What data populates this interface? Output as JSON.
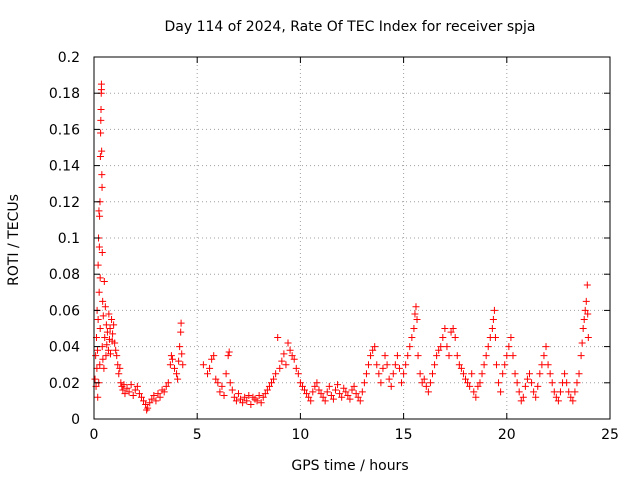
{
  "chart_data": {
    "type": "scatter",
    "title": "Day 114 of 2024, Rate Of TEC Index for receiver spja",
    "xlabel": "GPS time / hours",
    "ylabel": "ROTI / TECUs",
    "xlim": [
      0,
      25
    ],
    "ylim": [
      0,
      0.2
    ],
    "xticks": [
      0,
      5,
      10,
      15,
      20,
      25
    ],
    "xtick_labels": [
      "0",
      "5",
      "10",
      "15",
      "20",
      "25"
    ],
    "yticks": [
      0,
      0.02,
      0.04,
      0.06,
      0.08,
      0.1,
      0.12,
      0.14,
      0.16,
      0.18,
      0.2
    ],
    "ytick_labels": [
      "0",
      "0.02",
      "0.04",
      "0.06",
      "0.08",
      "0.1",
      "0.12",
      "0.14",
      "0.16",
      "0.18",
      "0.2"
    ],
    "grid": true,
    "marker": "+",
    "series": [
      {
        "name": "ROTI",
        "color": "#ff0000",
        "points": [
          [
            0.05,
            0.022
          ],
          [
            0.08,
            0.035
          ],
          [
            0.1,
            0.018
          ],
          [
            0.12,
            0.045
          ],
          [
            0.14,
            0.028
          ],
          [
            0.15,
            0.06
          ],
          [
            0.17,
            0.038
          ],
          [
            0.18,
            0.012
          ],
          [
            0.2,
            0.055
          ],
          [
            0.2,
            0.085
          ],
          [
            0.22,
            0.1
          ],
          [
            0.23,
            0.02
          ],
          [
            0.24,
            0.115
          ],
          [
            0.25,
            0.07
          ],
          [
            0.26,
            0.095
          ],
          [
            0.27,
            0.112
          ],
          [
            0.28,
            0.03
          ],
          [
            0.29,
            0.12
          ],
          [
            0.3,
            0.078
          ],
          [
            0.3,
            0.05
          ],
          [
            0.31,
            0.145
          ],
          [
            0.32,
            0.158
          ],
          [
            0.33,
            0.165
          ],
          [
            0.34,
            0.171
          ],
          [
            0.35,
            0.18
          ],
          [
            0.36,
            0.182
          ],
          [
            0.36,
            0.185
          ],
          [
            0.37,
            0.148
          ],
          [
            0.38,
            0.135
          ],
          [
            0.39,
            0.128
          ],
          [
            0.4,
            0.092
          ],
          [
            0.4,
            0.04
          ],
          [
            0.42,
            0.065
          ],
          [
            0.43,
            0.033
          ],
          [
            0.45,
            0.057
          ],
          [
            0.48,
            0.028
          ],
          [
            0.5,
            0.076
          ],
          [
            0.52,
            0.045
          ],
          [
            0.55,
            0.062
          ],
          [
            0.58,
            0.035
          ],
          [
            0.6,
            0.052
          ],
          [
            0.62,
            0.041
          ],
          [
            0.65,
            0.048
          ],
          [
            0.7,
            0.038
          ],
          [
            0.72,
            0.058
          ],
          [
            0.75,
            0.044
          ],
          [
            0.78,
            0.05
          ],
          [
            0.8,
            0.036
          ],
          [
            0.85,
            0.055
          ],
          [
            0.88,
            0.043
          ],
          [
            0.9,
            0.047
          ],
          [
            0.95,
            0.052
          ],
          [
            1.0,
            0.042
          ],
          [
            1.05,
            0.038
          ],
          [
            1.1,
            0.035
          ],
          [
            1.15,
            0.03
          ],
          [
            1.2,
            0.025
          ],
          [
            1.25,
            0.028
          ],
          [
            1.3,
            0.02
          ],
          [
            1.35,
            0.018
          ],
          [
            1.4,
            0.016
          ],
          [
            1.45,
            0.019
          ],
          [
            1.5,
            0.014
          ],
          [
            1.6,
            0.017
          ],
          [
            1.7,
            0.015
          ],
          [
            1.8,
            0.019
          ],
          [
            1.9,
            0.013
          ],
          [
            2.0,
            0.016
          ],
          [
            2.1,
            0.018
          ],
          [
            2.2,
            0.014
          ],
          [
            2.3,
            0.012
          ],
          [
            2.4,
            0.01
          ],
          [
            2.5,
            0.008
          ],
          [
            2.55,
            0.005
          ],
          [
            2.6,
            0.006
          ],
          [
            2.7,
            0.009
          ],
          [
            2.8,
            0.011
          ],
          [
            2.9,
            0.013
          ],
          [
            3.0,
            0.01
          ],
          [
            3.1,
            0.014
          ],
          [
            3.2,
            0.012
          ],
          [
            3.3,
            0.016
          ],
          [
            3.4,
            0.015
          ],
          [
            3.5,
            0.018
          ],
          [
            3.6,
            0.02
          ],
          [
            3.7,
            0.03
          ],
          [
            3.75,
            0.035
          ],
          [
            3.8,
            0.033
          ],
          [
            3.9,
            0.028
          ],
          [
            4.0,
            0.025
          ],
          [
            4.05,
            0.022
          ],
          [
            4.1,
            0.032
          ],
          [
            4.15,
            0.04
          ],
          [
            4.2,
            0.048
          ],
          [
            4.22,
            0.053
          ],
          [
            4.25,
            0.036
          ],
          [
            4.3,
            0.03
          ],
          [
            5.3,
            0.03
          ],
          [
            5.5,
            0.025
          ],
          [
            5.6,
            0.028
          ],
          [
            5.7,
            0.033
          ],
          [
            5.8,
            0.035
          ],
          [
            5.9,
            0.022
          ],
          [
            6.0,
            0.02
          ],
          [
            6.1,
            0.015
          ],
          [
            6.2,
            0.018
          ],
          [
            6.3,
            0.013
          ],
          [
            6.4,
            0.025
          ],
          [
            6.5,
            0.035
          ],
          [
            6.55,
            0.037
          ],
          [
            6.6,
            0.02
          ],
          [
            6.7,
            0.016
          ],
          [
            6.8,
            0.012
          ],
          [
            6.9,
            0.01
          ],
          [
            7.0,
            0.014
          ],
          [
            7.1,
            0.011
          ],
          [
            7.2,
            0.009
          ],
          [
            7.3,
            0.012
          ],
          [
            7.4,
            0.01
          ],
          [
            7.5,
            0.013
          ],
          [
            7.6,
            0.008
          ],
          [
            7.7,
            0.012
          ],
          [
            7.8,
            0.011
          ],
          [
            7.9,
            0.01
          ],
          [
            8.0,
            0.013
          ],
          [
            8.1,
            0.009
          ],
          [
            8.2,
            0.012
          ],
          [
            8.3,
            0.014
          ],
          [
            8.4,
            0.016
          ],
          [
            8.5,
            0.018
          ],
          [
            8.6,
            0.02
          ],
          [
            8.7,
            0.022
          ],
          [
            8.8,
            0.025
          ],
          [
            8.9,
            0.045
          ],
          [
            9.0,
            0.028
          ],
          [
            9.1,
            0.032
          ],
          [
            9.2,
            0.036
          ],
          [
            9.3,
            0.03
          ],
          [
            9.4,
            0.042
          ],
          [
            9.5,
            0.038
          ],
          [
            9.6,
            0.035
          ],
          [
            9.7,
            0.033
          ],
          [
            9.8,
            0.028
          ],
          [
            9.9,
            0.025
          ],
          [
            10.0,
            0.02
          ],
          [
            10.1,
            0.018
          ],
          [
            10.2,
            0.016
          ],
          [
            10.3,
            0.014
          ],
          [
            10.4,
            0.012
          ],
          [
            10.5,
            0.01
          ],
          [
            10.6,
            0.015
          ],
          [
            10.7,
            0.018
          ],
          [
            10.8,
            0.02
          ],
          [
            10.9,
            0.016
          ],
          [
            11.0,
            0.014
          ],
          [
            11.1,
            0.012
          ],
          [
            11.2,
            0.01
          ],
          [
            11.3,
            0.015
          ],
          [
            11.4,
            0.018
          ],
          [
            11.5,
            0.013
          ],
          [
            11.6,
            0.011
          ],
          [
            11.7,
            0.016
          ],
          [
            11.8,
            0.019
          ],
          [
            11.9,
            0.014
          ],
          [
            12.0,
            0.012
          ],
          [
            12.1,
            0.017
          ],
          [
            12.2,
            0.015
          ],
          [
            12.3,
            0.013
          ],
          [
            12.4,
            0.011
          ],
          [
            12.5,
            0.016
          ],
          [
            12.6,
            0.018
          ],
          [
            12.7,
            0.014
          ],
          [
            12.8,
            0.012
          ],
          [
            12.9,
            0.01
          ],
          [
            13.0,
            0.015
          ],
          [
            13.1,
            0.02
          ],
          [
            13.2,
            0.025
          ],
          [
            13.3,
            0.03
          ],
          [
            13.4,
            0.035
          ],
          [
            13.5,
            0.038
          ],
          [
            13.6,
            0.04
          ],
          [
            13.7,
            0.03
          ],
          [
            13.8,
            0.025
          ],
          [
            13.9,
            0.02
          ],
          [
            14.0,
            0.028
          ],
          [
            14.1,
            0.035
          ],
          [
            14.2,
            0.03
          ],
          [
            14.3,
            0.022
          ],
          [
            14.4,
            0.018
          ],
          [
            14.5,
            0.025
          ],
          [
            14.6,
            0.03
          ],
          [
            14.7,
            0.035
          ],
          [
            14.8,
            0.028
          ],
          [
            14.9,
            0.02
          ],
          [
            15.0,
            0.025
          ],
          [
            15.1,
            0.03
          ],
          [
            15.2,
            0.035
          ],
          [
            15.3,
            0.04
          ],
          [
            15.4,
            0.045
          ],
          [
            15.5,
            0.05
          ],
          [
            15.55,
            0.058
          ],
          [
            15.6,
            0.062
          ],
          [
            15.65,
            0.055
          ],
          [
            15.7,
            0.035
          ],
          [
            15.8,
            0.025
          ],
          [
            15.9,
            0.02
          ],
          [
            16.0,
            0.022
          ],
          [
            16.1,
            0.018
          ],
          [
            16.2,
            0.015
          ],
          [
            16.3,
            0.02
          ],
          [
            16.4,
            0.025
          ],
          [
            16.5,
            0.03
          ],
          [
            16.6,
            0.035
          ],
          [
            16.7,
            0.038
          ],
          [
            16.8,
            0.04
          ],
          [
            16.9,
            0.045
          ],
          [
            17.0,
            0.05
          ],
          [
            17.1,
            0.04
          ],
          [
            17.2,
            0.035
          ],
          [
            17.3,
            0.048
          ],
          [
            17.4,
            0.05
          ],
          [
            17.5,
            0.045
          ],
          [
            17.6,
            0.035
          ],
          [
            17.7,
            0.03
          ],
          [
            17.8,
            0.028
          ],
          [
            17.9,
            0.025
          ],
          [
            18.0,
            0.022
          ],
          [
            18.1,
            0.02
          ],
          [
            18.2,
            0.018
          ],
          [
            18.3,
            0.025
          ],
          [
            18.4,
            0.015
          ],
          [
            18.5,
            0.012
          ],
          [
            18.6,
            0.018
          ],
          [
            18.7,
            0.02
          ],
          [
            18.8,
            0.025
          ],
          [
            18.9,
            0.03
          ],
          [
            19.0,
            0.035
          ],
          [
            19.1,
            0.04
          ],
          [
            19.2,
            0.045
          ],
          [
            19.3,
            0.05
          ],
          [
            19.35,
            0.055
          ],
          [
            19.4,
            0.06
          ],
          [
            19.45,
            0.045
          ],
          [
            19.5,
            0.03
          ],
          [
            19.6,
            0.02
          ],
          [
            19.7,
            0.015
          ],
          [
            19.8,
            0.025
          ],
          [
            19.9,
            0.03
          ],
          [
            20.0,
            0.035
          ],
          [
            20.1,
            0.04
          ],
          [
            20.2,
            0.045
          ],
          [
            20.3,
            0.035
          ],
          [
            20.4,
            0.025
          ],
          [
            20.5,
            0.02
          ],
          [
            20.6,
            0.015
          ],
          [
            20.7,
            0.01
          ],
          [
            20.8,
            0.012
          ],
          [
            20.9,
            0.018
          ],
          [
            21.0,
            0.022
          ],
          [
            21.1,
            0.025
          ],
          [
            21.2,
            0.02
          ],
          [
            21.3,
            0.015
          ],
          [
            21.4,
            0.012
          ],
          [
            21.5,
            0.018
          ],
          [
            21.6,
            0.025
          ],
          [
            21.7,
            0.03
          ],
          [
            21.8,
            0.035
          ],
          [
            21.9,
            0.04
          ],
          [
            22.0,
            0.03
          ],
          [
            22.1,
            0.025
          ],
          [
            22.2,
            0.02
          ],
          [
            22.3,
            0.015
          ],
          [
            22.4,
            0.012
          ],
          [
            22.5,
            0.01
          ],
          [
            22.6,
            0.015
          ],
          [
            22.7,
            0.02
          ],
          [
            22.8,
            0.025
          ],
          [
            22.9,
            0.02
          ],
          [
            23.0,
            0.015
          ],
          [
            23.1,
            0.012
          ],
          [
            23.2,
            0.01
          ],
          [
            23.3,
            0.015
          ],
          [
            23.4,
            0.02
          ],
          [
            23.5,
            0.025
          ],
          [
            23.6,
            0.035
          ],
          [
            23.65,
            0.042
          ],
          [
            23.7,
            0.05
          ],
          [
            23.75,
            0.055
          ],
          [
            23.8,
            0.06
          ],
          [
            23.85,
            0.065
          ],
          [
            23.9,
            0.074
          ],
          [
            23.92,
            0.058
          ],
          [
            23.95,
            0.045
          ]
        ]
      }
    ]
  }
}
